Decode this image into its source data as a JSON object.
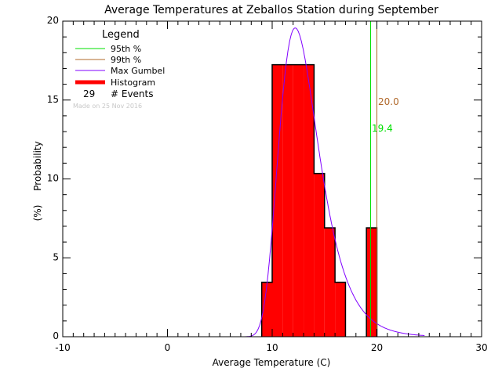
{
  "chart_data": {
    "type": "bar",
    "title": "Average Temperatures at Zeballos Station during September",
    "xlabel": "Average Temperature (C)",
    "ylabel": "Probability",
    "ylabel_unit": "(%)",
    "xlim": [
      -10,
      30
    ],
    "ylim": [
      0,
      20
    ],
    "x_ticks": [
      "-10",
      "0",
      "10",
      "20",
      "30"
    ],
    "y_ticks": [
      "0",
      "5",
      "10",
      "15",
      "20"
    ],
    "histogram": {
      "bins": [
        [
          9,
          10
        ],
        [
          10,
          11
        ],
        [
          11,
          12
        ],
        [
          12,
          13
        ],
        [
          13,
          14
        ],
        [
          14,
          15
        ],
        [
          15,
          16
        ],
        [
          16,
          17
        ],
        [
          19,
          20
        ]
      ],
      "counts": [
        1,
        5,
        5,
        5,
        5,
        3,
        2,
        1,
        2
      ],
      "values_percent": [
        3.45,
        17.24,
        17.24,
        17.24,
        17.24,
        10.34,
        6.9,
        3.45,
        6.9
      ]
    },
    "gumbel_fit": {
      "location": 12.2,
      "scale": 1.88
    },
    "percentile_95": {
      "value": 19.4,
      "label": "19.4"
    },
    "percentile_99": {
      "value": 20.0,
      "label": "20.0"
    },
    "legend": {
      "title": "Legend",
      "items": [
        "95th %",
        "99th %",
        "Max Gumbel",
        "Histogram"
      ],
      "events_count": "29",
      "events_label": "# Events",
      "made_on": "Made on 25 Nov 2016",
      "placement": "top-left"
    },
    "colors": {
      "p95": "#00e000",
      "p99": "#b0682a",
      "gumbel": "#8000ff",
      "histogram": "#ff0000"
    }
  }
}
